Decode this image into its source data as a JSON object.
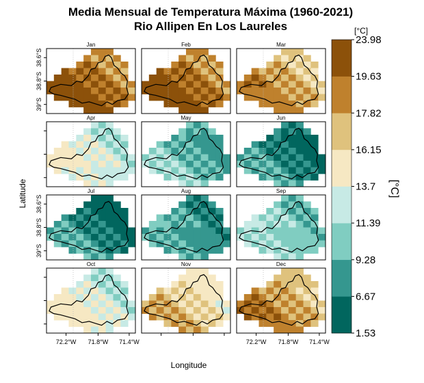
{
  "chart_data": {
    "type": "heatmap",
    "title": "Media Mensual de Temperatura Máxima (1960-2021)",
    "subtitle": "Rio Allipen En Los Laureles",
    "xlabel": "Longitude",
    "ylabel": "Latitude",
    "x_ticks": [
      "72.2°W",
      "71.8°W",
      "71.4°W"
    ],
    "y_ticks": [
      "39°S",
      "38.8°S",
      "38.6°S"
    ],
    "colorbar": {
      "unit": "[°C]",
      "title": "[°C]",
      "breaks": [
        1.53,
        6.67,
        9.28,
        11.39,
        13.7,
        16.15,
        17.82,
        19.63,
        23.98
      ],
      "colors": [
        "#01665e",
        "#35978f",
        "#80cdc1",
        "#c7eae5",
        "#f6e8c3",
        "#dfc27d",
        "#bf812d",
        "#8c510a"
      ]
    },
    "panels": [
      {
        "month": "Jan",
        "mean_class": 6.5,
        "range": [
          4,
          7
        ]
      },
      {
        "month": "Feb",
        "mean_class": 6.5,
        "range": [
          4,
          7
        ]
      },
      {
        "month": "Mar",
        "mean_class": 5.5,
        "range": [
          3,
          7
        ]
      },
      {
        "month": "Apr",
        "mean_class": 3.3,
        "range": [
          2,
          5
        ]
      },
      {
        "month": "May",
        "mean_class": 1.8,
        "range": [
          0,
          4
        ]
      },
      {
        "month": "Jun",
        "mean_class": 0.8,
        "range": [
          0,
          3
        ]
      },
      {
        "month": "Jul",
        "mean_class": 0.7,
        "range": [
          0,
          3
        ]
      },
      {
        "month": "Aug",
        "mean_class": 1.2,
        "range": [
          0,
          4
        ]
      },
      {
        "month": "Sep",
        "mean_class": 2.2,
        "range": [
          0,
          4
        ]
      },
      {
        "month": "Oct",
        "mean_class": 3.4,
        "range": [
          2,
          5
        ]
      },
      {
        "month": "Nov",
        "mean_class": 4.7,
        "range": [
          3,
          6
        ]
      },
      {
        "month": "Dec",
        "mean_class": 5.6,
        "range": [
          3,
          7
        ]
      }
    ]
  }
}
